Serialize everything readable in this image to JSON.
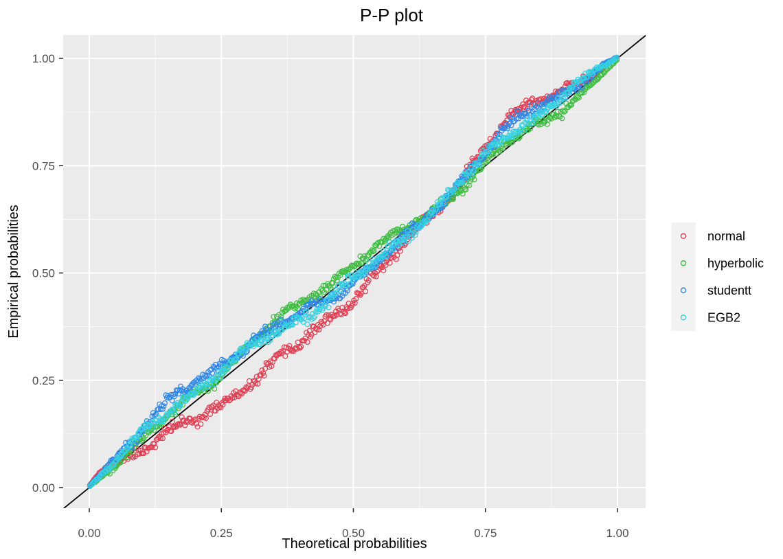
{
  "title": "P-P plot",
  "axes": {
    "x": {
      "label": "Theoretical probabilities",
      "tick_labels": [
        "0.00",
        "0.25",
        "0.50",
        "0.75",
        "1.00"
      ],
      "tick_values": [
        0,
        0.25,
        0.5,
        0.75,
        1
      ],
      "minor_gridlines": [
        0.125,
        0.375,
        0.625,
        0.875
      ],
      "range": [
        0,
        1
      ]
    },
    "y": {
      "label": "Empirical probabilities",
      "tick_labels": [
        "0.00",
        "0.25",
        "0.50",
        "0.75",
        "1.00"
      ],
      "tick_values": [
        0,
        0.25,
        0.5,
        0.75,
        1
      ],
      "minor_gridlines": [
        0.125,
        0.375,
        0.625,
        0.875
      ],
      "range": [
        0,
        1
      ]
    }
  },
  "legend": {
    "position": "right",
    "items": [
      {
        "label": "normal",
        "color": "#E03E52",
        "marker": "open-circle"
      },
      {
        "label": "hyperbolic",
        "color": "#3FBC42",
        "marker": "open-circle"
      },
      {
        "label": "studentt",
        "color": "#2F86E5",
        "marker": "open-circle"
      },
      {
        "label": "EGB2",
        "color": "#35D0E2",
        "marker": "open-circle"
      }
    ]
  },
  "colors": {
    "panel_background": "#EBEBEB",
    "gridline": "#FFFFFF",
    "tick_mark": "#333333",
    "tick_label": "#4D4D4D",
    "title_text": "#000000",
    "reference_line": "#000000",
    "legend_key_background": "#F2F2F2",
    "plot_background": "#FFFFFF"
  },
  "chart_data": {
    "type": "scatter",
    "title": "P-P plot",
    "xlabel": "Theoretical probabilities",
    "ylabel": "Empirical probabilities",
    "xlim": [
      0,
      1
    ],
    "ylim": [
      0,
      1
    ],
    "axis_expansion": 0.05,
    "grid": "on",
    "legend_position": "right-center",
    "marker": "open-circle",
    "reference_line": {
      "type": "identity",
      "color": "#000000",
      "spans_full_panel": true
    },
    "description": "P-P plot comparing empirical probabilities of data against theoretical probabilities of four fitted distributions; each series is a band of ~500 open circles around the 45-degree line. deviation_from_diagonal lists [theoretical_p, empirical_p - theoretical_p] control points read from the figure.",
    "series": [
      {
        "name": "normal",
        "color": "#E03E52",
        "n": 500,
        "seed": 11,
        "band_halfwidth": 0.013,
        "deviation_from_diagonal": [
          [
            0,
            0.004
          ],
          [
            0.02,
            0.018
          ],
          [
            0.05,
            0.012
          ],
          [
            0.1,
            -0.01
          ],
          [
            0.15,
            -0.028
          ],
          [
            0.2,
            -0.042
          ],
          [
            0.25,
            -0.052
          ],
          [
            0.3,
            -0.06
          ],
          [
            0.35,
            -0.065
          ],
          [
            0.4,
            -0.065
          ],
          [
            0.45,
            -0.06
          ],
          [
            0.5,
            -0.055
          ],
          [
            0.55,
            -0.045
          ],
          [
            0.6,
            -0.03
          ],
          [
            0.65,
            -0.012
          ],
          [
            0.7,
            0.015
          ],
          [
            0.75,
            0.045
          ],
          [
            0.8,
            0.058
          ],
          [
            0.85,
            0.05
          ],
          [
            0.9,
            0.032
          ],
          [
            0.95,
            0.015
          ],
          [
            1,
            0.002
          ]
        ]
      },
      {
        "name": "hyperbolic",
        "color": "#3FBC42",
        "n": 500,
        "seed": 22,
        "band_halfwidth": 0.011,
        "deviation_from_diagonal": [
          [
            0,
            0.002
          ],
          [
            0.05,
            0.008
          ],
          [
            0.1,
            0.012
          ],
          [
            0.15,
            0.015
          ],
          [
            0.2,
            0.018
          ],
          [
            0.25,
            0.022
          ],
          [
            0.3,
            0.026
          ],
          [
            0.35,
            0.03
          ],
          [
            0.4,
            0.028
          ],
          [
            0.45,
            0.024
          ],
          [
            0.5,
            0.02
          ],
          [
            0.55,
            0.012
          ],
          [
            0.6,
            0.004
          ],
          [
            0.65,
            -0.004
          ],
          [
            0.7,
            -0.005
          ],
          [
            0.75,
            0.002
          ],
          [
            0.8,
            0.007
          ],
          [
            0.85,
            0
          ],
          [
            0.9,
            -0.012
          ],
          [
            0.95,
            -0.012
          ],
          [
            1,
            -0.002
          ]
        ]
      },
      {
        "name": "studentt",
        "color": "#2F86E5",
        "n": 500,
        "seed": 33,
        "band_halfwidth": 0.012,
        "deviation_from_diagonal": [
          [
            0,
            0.003
          ],
          [
            0.03,
            0.015
          ],
          [
            0.07,
            0.028
          ],
          [
            0.12,
            0.04
          ],
          [
            0.17,
            0.048
          ],
          [
            0.22,
            0.045
          ],
          [
            0.27,
            0.038
          ],
          [
            0.32,
            0.025
          ],
          [
            0.37,
            0.012
          ],
          [
            0.42,
            0
          ],
          [
            0.47,
            -0.012
          ],
          [
            0.52,
            -0.02
          ],
          [
            0.57,
            -0.022
          ],
          [
            0.62,
            -0.015
          ],
          [
            0.67,
            0
          ],
          [
            0.72,
            0.02
          ],
          [
            0.77,
            0.038
          ],
          [
            0.82,
            0.042
          ],
          [
            0.87,
            0.032
          ],
          [
            0.92,
            0.02
          ],
          [
            0.96,
            0.012
          ],
          [
            1,
            0.003
          ]
        ]
      },
      {
        "name": "EGB2",
        "color": "#35D0E2",
        "n": 500,
        "seed": 44,
        "band_halfwidth": 0.012,
        "deviation_from_diagonal": [
          [
            0,
            0.002
          ],
          [
            0.04,
            0.01
          ],
          [
            0.1,
            0.022
          ],
          [
            0.15,
            0.028
          ],
          [
            0.2,
            0.027
          ],
          [
            0.25,
            0.022
          ],
          [
            0.3,
            0.015
          ],
          [
            0.35,
            0.006
          ],
          [
            0.4,
            -0.004
          ],
          [
            0.45,
            -0.012
          ],
          [
            0.5,
            -0.018
          ],
          [
            0.55,
            -0.02
          ],
          [
            0.6,
            -0.015
          ],
          [
            0.65,
            -0.005
          ],
          [
            0.7,
            0.008
          ],
          [
            0.75,
            0.02
          ],
          [
            0.8,
            0.028
          ],
          [
            0.85,
            0.025
          ],
          [
            0.9,
            0.018
          ],
          [
            0.95,
            0.01
          ],
          [
            1,
            0.003
          ]
        ]
      }
    ]
  }
}
